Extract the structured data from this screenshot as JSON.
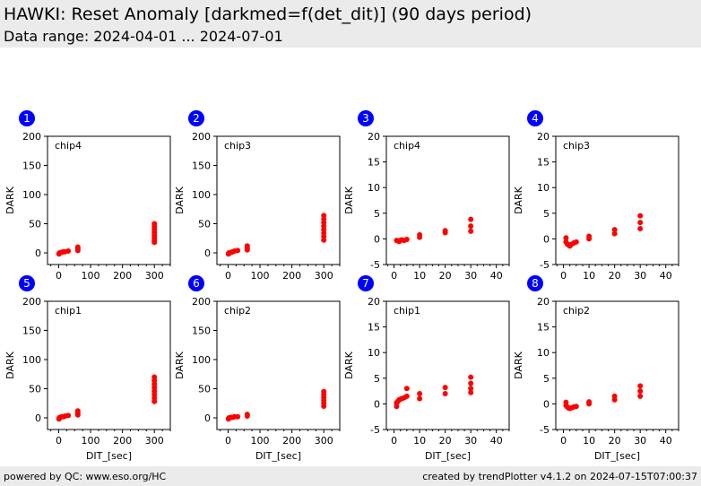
{
  "header": {
    "title": "HAWKI: Reset Anomaly [darkmed=f(det_dit)] (90 days period)",
    "subtitle": "Data range: 2024-04-01 ... 2024-07-01"
  },
  "footer": {
    "left": "powered by QC: www.eso.org/HC",
    "right": "created by trendPlotter v4.1.2 on 2024-07-15T07:00:37"
  },
  "colors": {
    "marker": "#ff0000",
    "badge": "#0000ff",
    "header_bg": "#ebebeb"
  },
  "chart_data": [
    {
      "type": "scatter",
      "panel": "1",
      "annotation": "chip4",
      "ylabel": "DARK",
      "xlabel": "",
      "xlim": [
        -35,
        350
      ],
      "ylim": [
        -20,
        200
      ],
      "xticks": [
        0,
        100,
        200,
        300
      ],
      "yticks": [
        0,
        50,
        100,
        150,
        200
      ],
      "x": [
        1,
        1.5,
        2,
        3,
        5,
        10,
        15,
        20,
        30,
        60,
        60,
        60,
        300,
        300,
        300,
        300,
        300,
        300,
        300,
        300
      ],
      "y": [
        -2,
        -1,
        -1,
        0,
        0,
        1,
        2,
        2,
        3,
        4,
        7,
        10,
        18,
        22,
        26,
        30,
        35,
        40,
        45,
        50
      ]
    },
    {
      "type": "scatter",
      "panel": "2",
      "annotation": "chip3",
      "ylabel": "DARK",
      "xlabel": "",
      "xlim": [
        -35,
        350
      ],
      "ylim": [
        -20,
        200
      ],
      "xticks": [
        0,
        100,
        200,
        300
      ],
      "yticks": [
        0,
        50,
        100,
        150,
        200
      ],
      "x": [
        1,
        1.5,
        2,
        3,
        5,
        10,
        15,
        20,
        30,
        60,
        60,
        60,
        300,
        300,
        300,
        300,
        300,
        300,
        300,
        300
      ],
      "y": [
        -2,
        -1,
        -1,
        0,
        0,
        1,
        2,
        3,
        4,
        5,
        8,
        12,
        22,
        28,
        34,
        40,
        46,
        52,
        58,
        64
      ]
    },
    {
      "type": "scatter",
      "panel": "3",
      "annotation": "chip4",
      "ylabel": "DARK",
      "xlabel": "",
      "xlim": [
        -3,
        45
      ],
      "ylim": [
        -5,
        20
      ],
      "xticks": [
        0,
        10,
        20,
        30,
        40
      ],
      "yticks": [
        -5,
        0,
        5,
        10,
        15,
        20
      ],
      "x": [
        1,
        1.5,
        2,
        2.5,
        3,
        4,
        5,
        10,
        10,
        20,
        20,
        30,
        30,
        30
      ],
      "y": [
        -0.3,
        -0.4,
        -0.5,
        -0.3,
        -0.2,
        -0.3,
        -0.1,
        0.3,
        0.8,
        1.2,
        1.6,
        1.5,
        2.5,
        3.8
      ]
    },
    {
      "type": "scatter",
      "panel": "4",
      "annotation": "chip3",
      "ylabel": "DARK",
      "xlabel": "",
      "xlim": [
        -3,
        45
      ],
      "ylim": [
        -5,
        20
      ],
      "xticks": [
        0,
        10,
        20,
        30,
        40
      ],
      "yticks": [
        -5,
        0,
        5,
        10,
        15,
        20
      ],
      "x": [
        1,
        1,
        1.5,
        2,
        2.5,
        3,
        4,
        5,
        10,
        10,
        20,
        20,
        30,
        30,
        30
      ],
      "y": [
        0.2,
        -0.6,
        -1,
        -1.2,
        -1.4,
        -1.1,
        -0.8,
        -0.6,
        0,
        0.5,
        1,
        1.8,
        2,
        3.2,
        4.5
      ]
    },
    {
      "type": "scatter",
      "panel": "5",
      "annotation": "chip1",
      "ylabel": "DARK",
      "xlabel": "DIT_[sec]",
      "xlim": [
        -35,
        350
      ],
      "ylim": [
        -20,
        200
      ],
      "xticks": [
        0,
        100,
        200,
        300
      ],
      "yticks": [
        0,
        50,
        100,
        150,
        200
      ],
      "x": [
        1,
        1.5,
        2,
        3,
        5,
        10,
        15,
        20,
        30,
        60,
        60,
        60,
        300,
        300,
        300,
        300,
        300,
        300,
        300,
        300
      ],
      "y": [
        -2,
        -1,
        0,
        0,
        1,
        2,
        2,
        3,
        4,
        5,
        8,
        12,
        28,
        34,
        40,
        46,
        52,
        58,
        64,
        70
      ]
    },
    {
      "type": "scatter",
      "panel": "6",
      "annotation": "chip2",
      "ylabel": "DARK",
      "xlabel": "DIT_[sec]",
      "xlim": [
        -35,
        350
      ],
      "ylim": [
        -20,
        200
      ],
      "xticks": [
        0,
        100,
        200,
        300
      ],
      "yticks": [
        0,
        50,
        100,
        150,
        200
      ],
      "x": [
        1,
        1.5,
        2,
        3,
        5,
        10,
        15,
        20,
        30,
        60,
        60,
        300,
        300,
        300,
        300,
        300,
        300
      ],
      "y": [
        -2,
        -1,
        -1,
        0,
        0,
        1,
        1,
        2,
        2,
        3,
        6,
        20,
        25,
        30,
        35,
        40,
        45
      ]
    },
    {
      "type": "scatter",
      "panel": "7",
      "annotation": "chip1",
      "ylabel": "DARK",
      "xlabel": "DIT_[sec]",
      "xlim": [
        -3,
        45
      ],
      "ylim": [
        -5,
        20
      ],
      "xticks": [
        0,
        10,
        20,
        30,
        40
      ],
      "yticks": [
        -5,
        0,
        5,
        10,
        15,
        20
      ],
      "x": [
        1,
        1,
        1.5,
        2,
        2.5,
        3,
        4,
        5,
        5,
        10,
        10,
        20,
        20,
        30,
        30,
        30,
        30
      ],
      "y": [
        -0.5,
        0.2,
        0.5,
        0.8,
        0.9,
        1,
        1.2,
        1.5,
        3,
        1,
        2,
        2,
        3.2,
        2.2,
        3,
        4,
        5.2
      ]
    },
    {
      "type": "scatter",
      "panel": "8",
      "annotation": "chip2",
      "ylabel": "DARK",
      "xlabel": "DIT_[sec]",
      "xlim": [
        -3,
        45
      ],
      "ylim": [
        -5,
        20
      ],
      "xticks": [
        0,
        10,
        20,
        30,
        40
      ],
      "yticks": [
        -5,
        0,
        5,
        10,
        15,
        20
      ],
      "x": [
        1,
        1,
        1.5,
        2,
        2.5,
        3,
        4,
        5,
        10,
        10,
        20,
        20,
        30,
        30,
        30
      ],
      "y": [
        0.3,
        -0.3,
        -0.6,
        -0.8,
        -0.9,
        -0.8,
        -0.6,
        -0.5,
        0,
        0.4,
        0.8,
        1.5,
        1.5,
        2.5,
        3.5
      ]
    }
  ]
}
